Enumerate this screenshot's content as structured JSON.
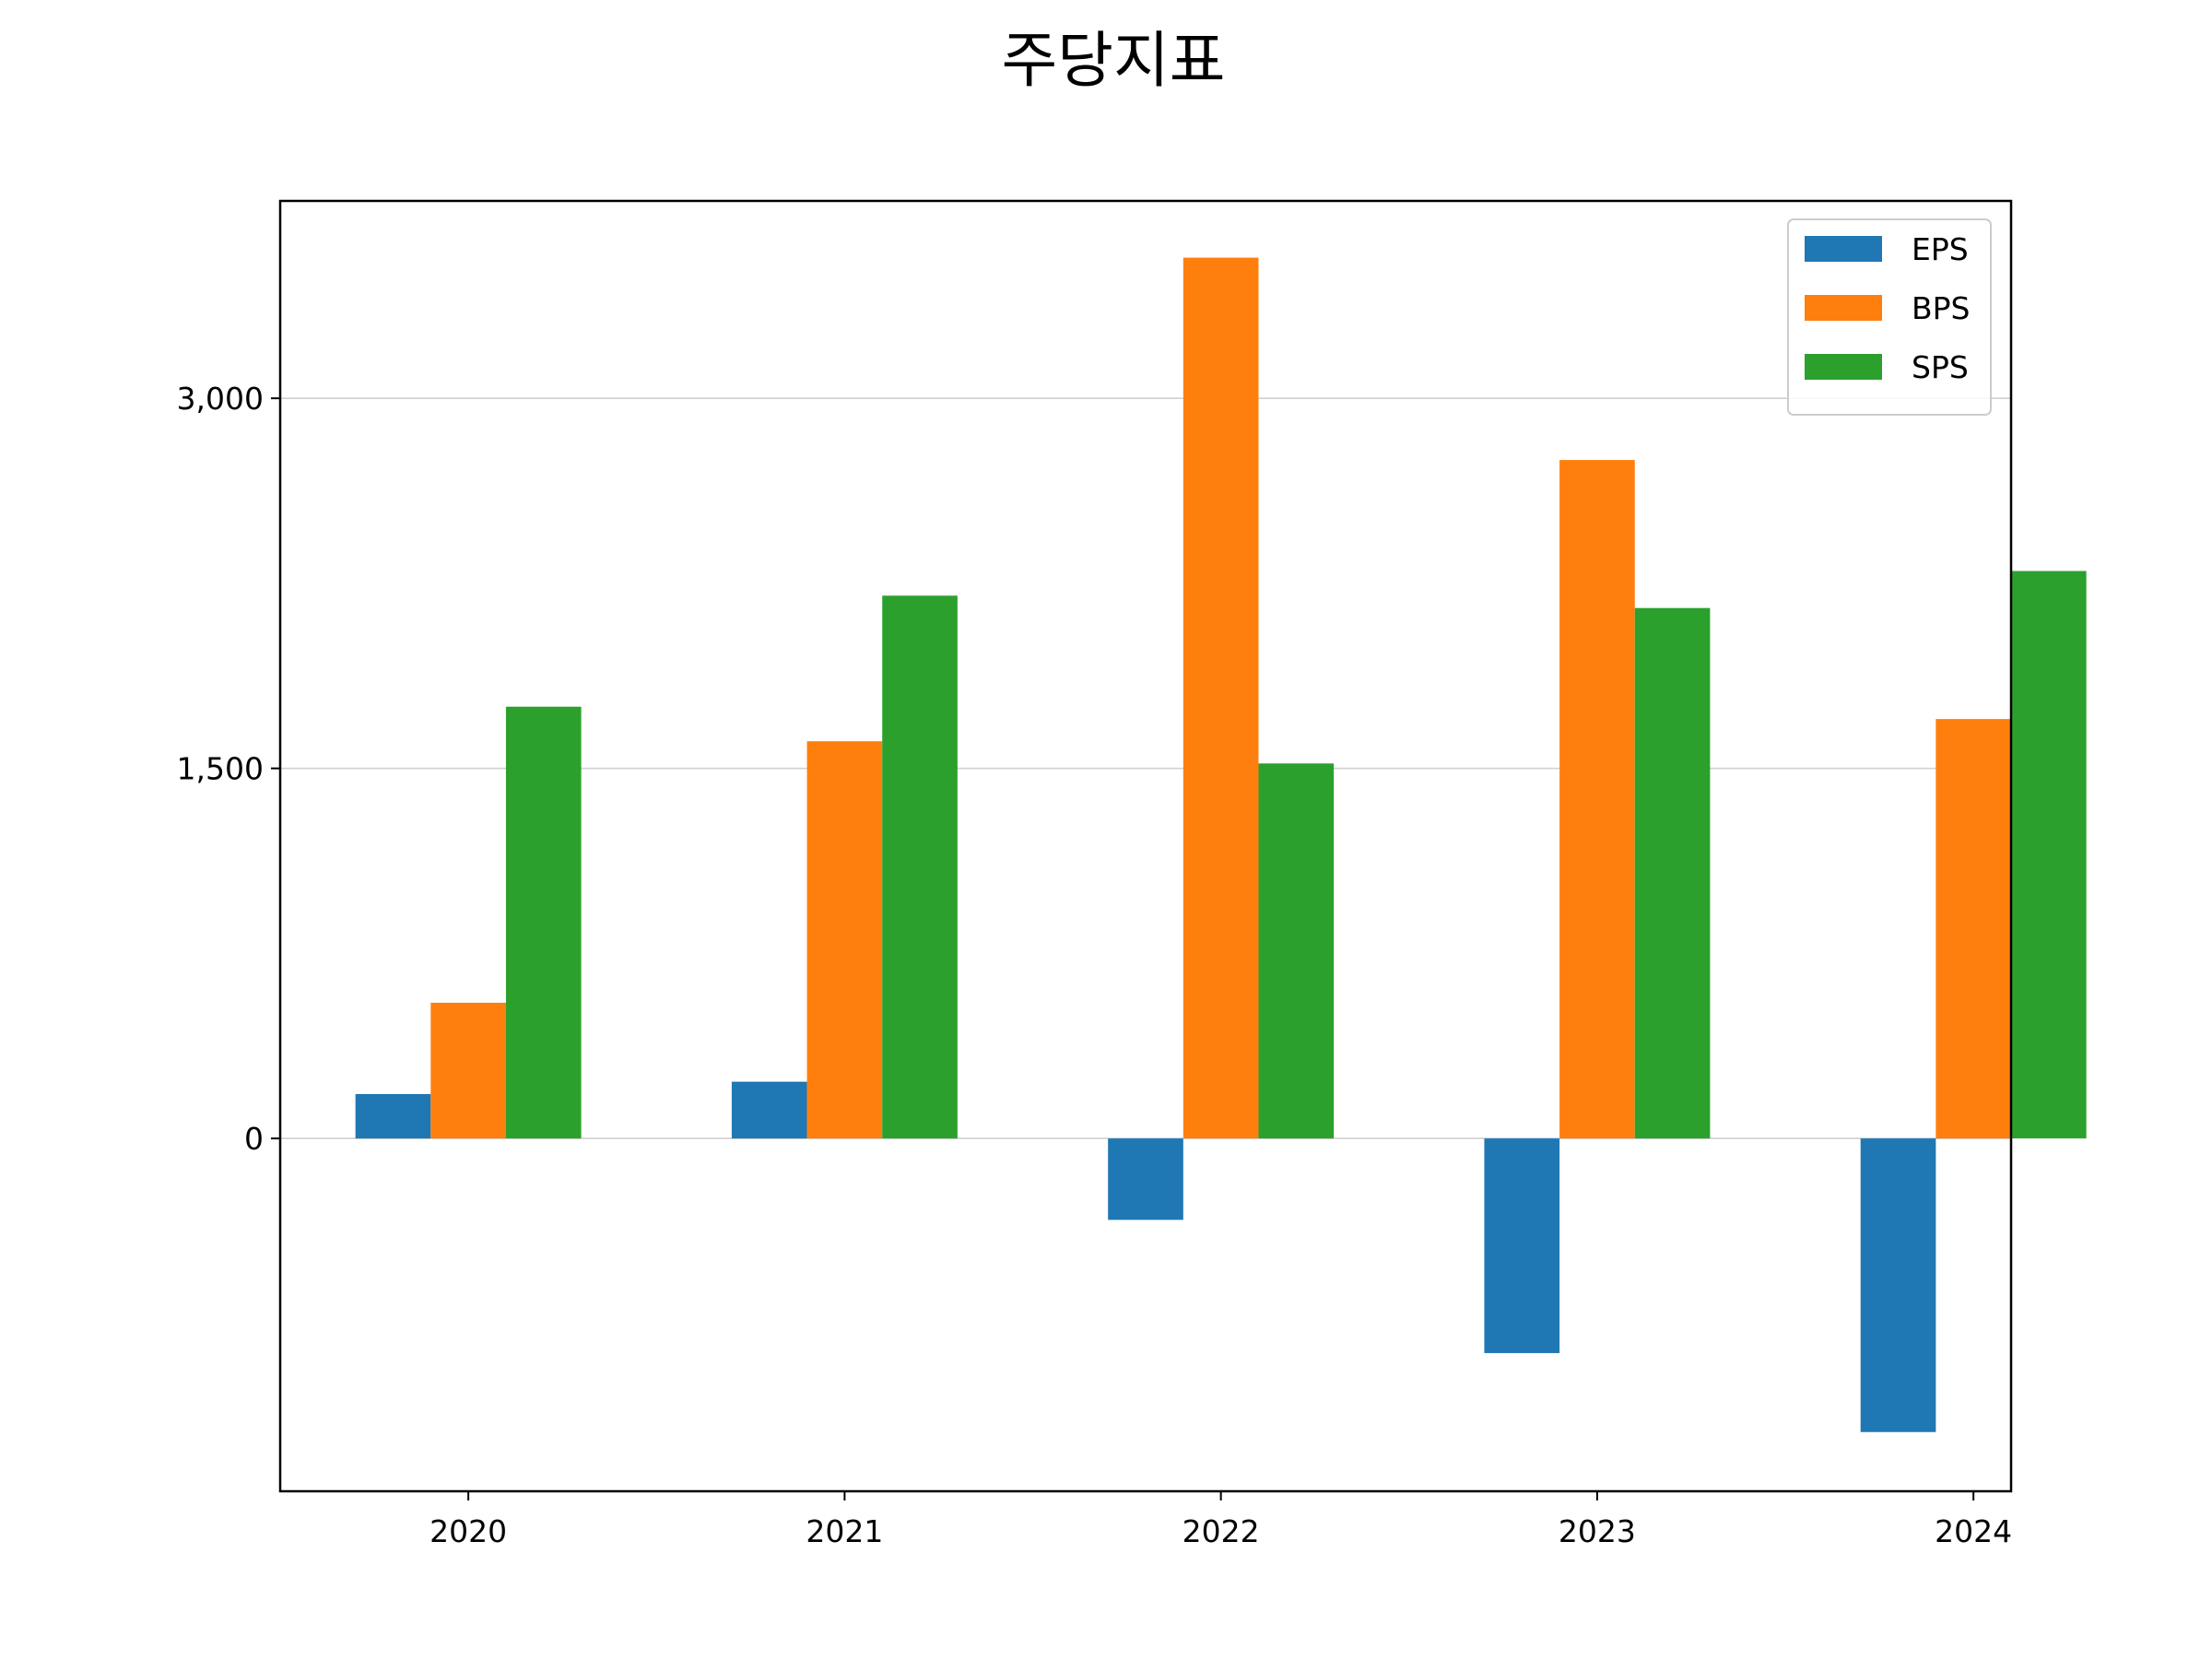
{
  "chart_data": {
    "type": "bar",
    "title": "주당지표",
    "xlabel": "",
    "ylabel": "",
    "categories": [
      "2020",
      "2021",
      "2022",
      "2023",
      "2024"
    ],
    "series": [
      {
        "name": "EPS",
        "color": "#1f77b4",
        "values": [
          180,
          230,
          -330,
          -870,
          -1190
        ]
      },
      {
        "name": "BPS",
        "color": "#ff7f0e",
        "values": [
          550,
          1610,
          3570,
          2750,
          1700
        ]
      },
      {
        "name": "SPS",
        "color": "#2ca02c",
        "values": [
          1750,
          2200,
          1520,
          2150,
          2300
        ]
      }
    ],
    "ylim": [
      -1430,
      3800
    ],
    "yticks": [
      0,
      1500,
      3000
    ],
    "ytick_labels": [
      "0",
      "1,500",
      "3,000"
    ],
    "grid": "horizontal",
    "legend_position": "top-right"
  }
}
